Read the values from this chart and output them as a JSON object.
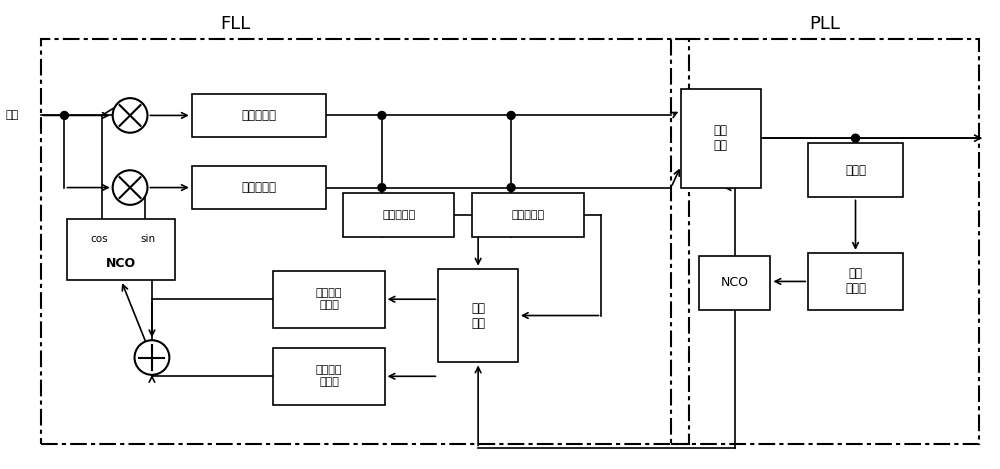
{
  "title_fll": "FLL",
  "title_pll": "PLL",
  "label_input": "输入",
  "label_lpf1": "低通滤波器",
  "label_lpf2": "低通滤波器",
  "label_nco_fll": "NCO",
  "label_nco_cos": "cos",
  "label_nco_sin": "sin",
  "label_phase_rot": "相位\n旋转",
  "label_phase_det": "鉴相器",
  "label_loop_filter_pll": "环路\n滤波器",
  "label_nco_pll": "NCO",
  "label_freq_det1": "第一鉴频器",
  "label_freq_det2": "第二鉴频器",
  "label_loop_filter1": "第一环路\n滤波器",
  "label_loop_filter2": "第二环路\n滤波器",
  "label_switch": "切换\n控制",
  "bg_color": "#ffffff",
  "box_color": "#000000",
  "line_color": "#000000",
  "text_color": "#000000"
}
